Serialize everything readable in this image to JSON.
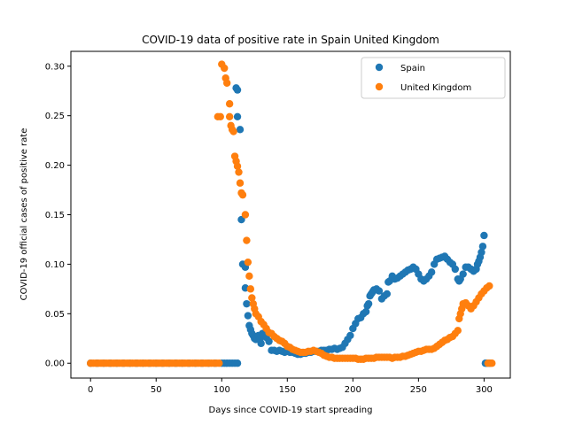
{
  "chart_data": {
    "type": "scatter",
    "title": "COVID-19 data of positive rate in Spain United Kingdom",
    "xlabel": "Days since COVID-19 start spreading",
    "ylabel": "COVID-19 official cases of positive rate",
    "xlim": [
      -15,
      320
    ],
    "ylim": [
      -0.015,
      0.315
    ],
    "xticks": [
      0,
      50,
      100,
      150,
      200,
      250,
      300
    ],
    "yticks": [
      0.0,
      0.05,
      0.1,
      0.15,
      0.2,
      0.25,
      0.3
    ],
    "grid": false,
    "legend_position": "top-right",
    "series": [
      {
        "name": "Spain",
        "color": "#1f77b4",
        "points": [
          [
            0,
            0
          ],
          [
            5,
            0
          ],
          [
            10,
            0
          ],
          [
            15,
            0
          ],
          [
            20,
            0
          ],
          [
            25,
            0
          ],
          [
            30,
            0
          ],
          [
            35,
            0
          ],
          [
            40,
            0
          ],
          [
            45,
            0
          ],
          [
            50,
            0
          ],
          [
            55,
            0
          ],
          [
            60,
            0
          ],
          [
            65,
            0
          ],
          [
            70,
            0
          ],
          [
            75,
            0
          ],
          [
            80,
            0
          ],
          [
            85,
            0
          ],
          [
            90,
            0
          ],
          [
            95,
            0
          ],
          [
            100,
            0
          ],
          [
            102,
            0
          ],
          [
            104,
            0
          ],
          [
            106,
            0
          ],
          [
            108,
            0
          ],
          [
            110,
            0
          ],
          [
            112,
            0
          ],
          [
            111,
            0.278
          ],
          [
            112,
            0.276
          ],
          [
            112,
            0.249
          ],
          [
            114,
            0.236
          ],
          [
            115,
            0.145
          ],
          [
            116,
            0.1
          ],
          [
            118,
            0.097
          ],
          [
            118,
            0.076
          ],
          [
            119,
            0.06
          ],
          [
            120,
            0.048
          ],
          [
            121,
            0.038
          ],
          [
            122,
            0.034
          ],
          [
            123,
            0.03
          ],
          [
            124,
            0.028
          ],
          [
            125,
            0.025
          ],
          [
            126,
            0.024
          ],
          [
            127,
            0.026
          ],
          [
            128,
            0.028
          ],
          [
            129,
            0.024
          ],
          [
            130,
            0.02
          ],
          [
            131,
            0.03
          ],
          [
            132,
            0.028
          ],
          [
            134,
            0.026
          ],
          [
            136,
            0.022
          ],
          [
            138,
            0.013
          ],
          [
            140,
            0.013
          ],
          [
            142,
            0.012
          ],
          [
            144,
            0.013
          ],
          [
            146,
            0.012
          ],
          [
            148,
            0.011
          ],
          [
            150,
            0.012
          ],
          [
            152,
            0.011
          ],
          [
            154,
            0.011
          ],
          [
            156,
            0.01
          ],
          [
            158,
            0.009
          ],
          [
            160,
            0.009
          ],
          [
            162,
            0.01
          ],
          [
            164,
            0.01
          ],
          [
            166,
            0.011
          ],
          [
            168,
            0.011
          ],
          [
            170,
            0.012
          ],
          [
            172,
            0.012
          ],
          [
            174,
            0.012
          ],
          [
            176,
            0.013
          ],
          [
            178,
            0.013
          ],
          [
            180,
            0.013
          ],
          [
            182,
            0.014
          ],
          [
            184,
            0.014
          ],
          [
            186,
            0.015
          ],
          [
            188,
            0.014
          ],
          [
            190,
            0.015
          ],
          [
            192,
            0.016
          ],
          [
            194,
            0.02
          ],
          [
            196,
            0.024
          ],
          [
            198,
            0.028
          ],
          [
            200,
            0.035
          ],
          [
            202,
            0.04
          ],
          [
            204,
            0.045
          ],
          [
            206,
            0.046
          ],
          [
            208,
            0.05
          ],
          [
            210,
            0.052
          ],
          [
            211,
            0.058
          ],
          [
            212,
            0.06
          ],
          [
            213,
            0.068
          ],
          [
            214,
            0.07
          ],
          [
            215,
            0.072
          ],
          [
            216,
            0.074
          ],
          [
            218,
            0.075
          ],
          [
            220,
            0.073
          ],
          [
            222,
            0.065
          ],
          [
            224,
            0.068
          ],
          [
            226,
            0.07
          ],
          [
            227,
            0.082
          ],
          [
            228,
            0.083
          ],
          [
            230,
            0.088
          ],
          [
            232,
            0.085
          ],
          [
            234,
            0.086
          ],
          [
            236,
            0.088
          ],
          [
            238,
            0.09
          ],
          [
            240,
            0.092
          ],
          [
            242,
            0.094
          ],
          [
            244,
            0.095
          ],
          [
            246,
            0.097
          ],
          [
            248,
            0.095
          ],
          [
            250,
            0.09
          ],
          [
            252,
            0.085
          ],
          [
            254,
            0.083
          ],
          [
            256,
            0.085
          ],
          [
            258,
            0.088
          ],
          [
            260,
            0.092
          ],
          [
            262,
            0.1
          ],
          [
            264,
            0.105
          ],
          [
            266,
            0.106
          ],
          [
            268,
            0.107
          ],
          [
            270,
            0.108
          ],
          [
            272,
            0.105
          ],
          [
            274,
            0.102
          ],
          [
            276,
            0.1
          ],
          [
            278,
            0.095
          ],
          [
            280,
            0.085
          ],
          [
            281,
            0.083
          ],
          [
            282,
            0.085
          ],
          [
            284,
            0.09
          ],
          [
            286,
            0.097
          ],
          [
            288,
            0.097
          ],
          [
            290,
            0.095
          ],
          [
            292,
            0.093
          ],
          [
            294,
            0.095
          ],
          [
            295,
            0.1
          ],
          [
            296,
            0.103
          ],
          [
            297,
            0.107
          ],
          [
            298,
            0.112
          ],
          [
            299,
            0.118
          ],
          [
            300,
            0.129
          ],
          [
            301,
            0
          ],
          [
            302,
            0
          ],
          [
            304,
            0
          ]
        ]
      },
      {
        "name": "United Kingdom",
        "color": "#ff7f0e",
        "points": [
          [
            0,
            0
          ],
          [
            2,
            0
          ],
          [
            4,
            0
          ],
          [
            6,
            0
          ],
          [
            8,
            0
          ],
          [
            10,
            0
          ],
          [
            12,
            0
          ],
          [
            14,
            0
          ],
          [
            16,
            0
          ],
          [
            18,
            0
          ],
          [
            20,
            0
          ],
          [
            22,
            0
          ],
          [
            24,
            0
          ],
          [
            26,
            0
          ],
          [
            28,
            0
          ],
          [
            30,
            0
          ],
          [
            32,
            0
          ],
          [
            34,
            0
          ],
          [
            36,
            0
          ],
          [
            38,
            0
          ],
          [
            40,
            0
          ],
          [
            42,
            0
          ],
          [
            44,
            0
          ],
          [
            46,
            0
          ],
          [
            48,
            0
          ],
          [
            50,
            0
          ],
          [
            52,
            0
          ],
          [
            54,
            0
          ],
          [
            56,
            0
          ],
          [
            58,
            0
          ],
          [
            60,
            0
          ],
          [
            62,
            0
          ],
          [
            64,
            0
          ],
          [
            66,
            0
          ],
          [
            68,
            0
          ],
          [
            70,
            0
          ],
          [
            72,
            0
          ],
          [
            74,
            0
          ],
          [
            76,
            0
          ],
          [
            78,
            0
          ],
          [
            80,
            0
          ],
          [
            82,
            0
          ],
          [
            84,
            0
          ],
          [
            86,
            0
          ],
          [
            88,
            0
          ],
          [
            90,
            0
          ],
          [
            92,
            0
          ],
          [
            94,
            0
          ],
          [
            96,
            0
          ],
          [
            98,
            0
          ],
          [
            97,
            0.249
          ],
          [
            99,
            0.249
          ],
          [
            100,
            0.302
          ],
          [
            102,
            0.298
          ],
          [
            103,
            0.288
          ],
          [
            104,
            0.283
          ],
          [
            106,
            0.262
          ],
          [
            106,
            0.249
          ],
          [
            107,
            0.24
          ],
          [
            108,
            0.236
          ],
          [
            109,
            0.234
          ],
          [
            110,
            0.209
          ],
          [
            111,
            0.204
          ],
          [
            112,
            0.199
          ],
          [
            113,
            0.193
          ],
          [
            114,
            0.182
          ],
          [
            115,
            0.172
          ],
          [
            116,
            0.17
          ],
          [
            118,
            0.15
          ],
          [
            119,
            0.124
          ],
          [
            120,
            0.102
          ],
          [
            121,
            0.088
          ],
          [
            122,
            0.075
          ],
          [
            123,
            0.066
          ],
          [
            124,
            0.06
          ],
          [
            125,
            0.055
          ],
          [
            126,
            0.05
          ],
          [
            128,
            0.047
          ],
          [
            130,
            0.042
          ],
          [
            132,
            0.039
          ],
          [
            134,
            0.035
          ],
          [
            136,
            0.031
          ],
          [
            138,
            0.03
          ],
          [
            140,
            0.027
          ],
          [
            142,
            0.025
          ],
          [
            144,
            0.023
          ],
          [
            146,
            0.022
          ],
          [
            148,
            0.02
          ],
          [
            150,
            0.017
          ],
          [
            152,
            0.016
          ],
          [
            154,
            0.014
          ],
          [
            156,
            0.013
          ],
          [
            158,
            0.012
          ],
          [
            160,
            0.011
          ],
          [
            162,
            0.011
          ],
          [
            164,
            0.011
          ],
          [
            166,
            0.012
          ],
          [
            168,
            0.012
          ],
          [
            170,
            0.013
          ],
          [
            172,
            0.012
          ],
          [
            174,
            0.011
          ],
          [
            176,
            0.01
          ],
          [
            178,
            0.008
          ],
          [
            180,
            0.007
          ],
          [
            182,
            0.006
          ],
          [
            184,
            0.006
          ],
          [
            186,
            0.005
          ],
          [
            188,
            0.005
          ],
          [
            190,
            0.005
          ],
          [
            192,
            0.005
          ],
          [
            194,
            0.005
          ],
          [
            196,
            0.005
          ],
          [
            198,
            0.005
          ],
          [
            200,
            0.005
          ],
          [
            202,
            0.005
          ],
          [
            204,
            0.004
          ],
          [
            206,
            0.004
          ],
          [
            208,
            0.004
          ],
          [
            210,
            0.005
          ],
          [
            212,
            0.005
          ],
          [
            214,
            0.005
          ],
          [
            216,
            0.005
          ],
          [
            218,
            0.006
          ],
          [
            220,
            0.006
          ],
          [
            222,
            0.006
          ],
          [
            224,
            0.006
          ],
          [
            226,
            0.006
          ],
          [
            228,
            0.006
          ],
          [
            230,
            0.005
          ],
          [
            232,
            0.006
          ],
          [
            234,
            0.006
          ],
          [
            236,
            0.006
          ],
          [
            238,
            0.007
          ],
          [
            240,
            0.007
          ],
          [
            242,
            0.008
          ],
          [
            244,
            0.009
          ],
          [
            246,
            0.01
          ],
          [
            248,
            0.011
          ],
          [
            250,
            0.012
          ],
          [
            252,
            0.012
          ],
          [
            254,
            0.013
          ],
          [
            256,
            0.014
          ],
          [
            258,
            0.014
          ],
          [
            260,
            0.014
          ],
          [
            262,
            0.015
          ],
          [
            264,
            0.017
          ],
          [
            266,
            0.019
          ],
          [
            268,
            0.021
          ],
          [
            270,
            0.023
          ],
          [
            272,
            0.024
          ],
          [
            274,
            0.026
          ],
          [
            276,
            0.027
          ],
          [
            278,
            0.03
          ],
          [
            280,
            0.033
          ],
          [
            281,
            0.045
          ],
          [
            282,
            0.05
          ],
          [
            283,
            0.055
          ],
          [
            284,
            0.06
          ],
          [
            286,
            0.061
          ],
          [
            288,
            0.058
          ],
          [
            290,
            0.055
          ],
          [
            292,
            0.058
          ],
          [
            294,
            0.062
          ],
          [
            296,
            0.066
          ],
          [
            298,
            0.07
          ],
          [
            300,
            0.073
          ],
          [
            302,
            0.076
          ],
          [
            304,
            0.078
          ],
          [
            303,
            0
          ],
          [
            305,
            0
          ],
          [
            306,
            0
          ]
        ]
      }
    ]
  }
}
